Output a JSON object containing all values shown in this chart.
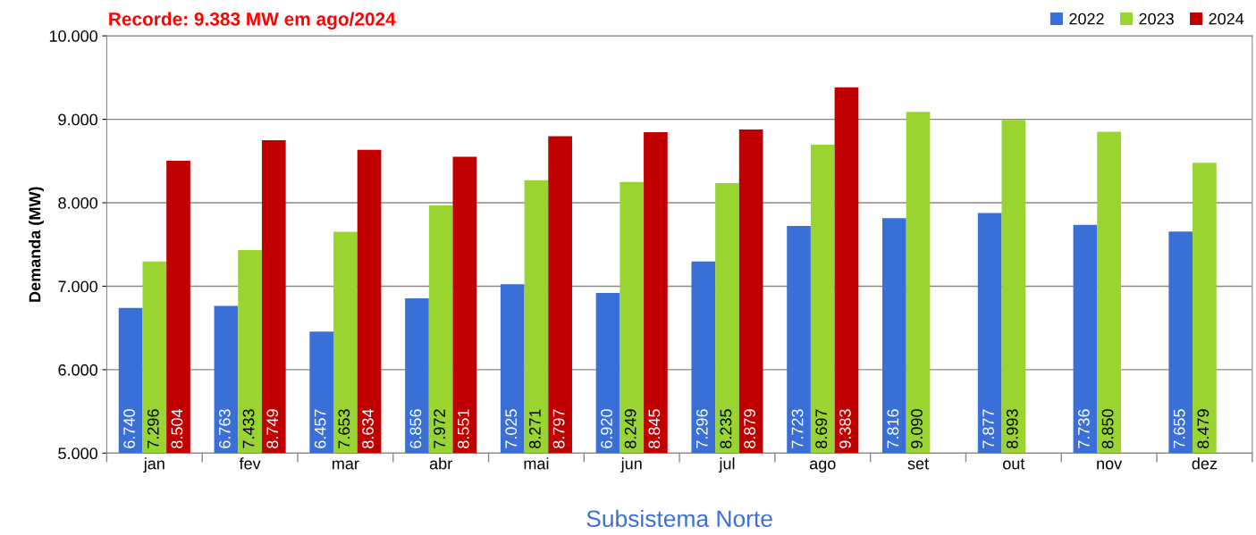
{
  "chart_data": {
    "type": "bar",
    "title": "Recorde: 9.383 MW em ago/2024",
    "xlabel": "Subsistema Norte",
    "ylabel": "Demanda (MW)",
    "categories": [
      "jan",
      "fev",
      "mar",
      "abr",
      "mai",
      "jun",
      "jul",
      "ago",
      "set",
      "out",
      "nov",
      "dez"
    ],
    "series": [
      {
        "name": "2022",
        "color": "#3a6fd8",
        "values": [
          6740,
          6763,
          6457,
          6856,
          7025,
          6920,
          7296,
          7723,
          7816,
          7877,
          7736,
          7655
        ],
        "value_labels": [
          "6.740",
          "6.763",
          "6.457",
          "6.856",
          "7.025",
          "6.920",
          "7.296",
          "7.723",
          "7.816",
          "7.877",
          "7.736",
          "7.655"
        ]
      },
      {
        "name": "2023",
        "color": "#99d431",
        "values": [
          7296,
          7433,
          7653,
          7972,
          8271,
          8249,
          8235,
          8697,
          9090,
          8993,
          8850,
          8479
        ],
        "value_labels": [
          "7.296",
          "7.433",
          "7.653",
          "7.972",
          "8.271",
          "8.249",
          "8.235",
          "8.697",
          "9.090",
          "8.993",
          "8.850",
          "8.479"
        ]
      },
      {
        "name": "2024",
        "color": "#c00000",
        "values": [
          8504,
          8749,
          8634,
          8551,
          8797,
          8845,
          8879,
          9383,
          null,
          null,
          null,
          null
        ],
        "value_labels": [
          "8.504",
          "8.749",
          "8.634",
          "8.551",
          "8.797",
          "8.845",
          "8.879",
          "9.383",
          null,
          null,
          null,
          null
        ]
      }
    ],
    "ylim": [
      5000,
      10000
    ],
    "yticks": [
      {
        "value": 5000,
        "label": "5.000"
      },
      {
        "value": 6000,
        "label": "6.000"
      },
      {
        "value": 7000,
        "label": "7.000"
      },
      {
        "value": 8000,
        "label": "8.000"
      },
      {
        "value": 9000,
        "label": "9.000"
      },
      {
        "value": 10000,
        "label": "10.000"
      }
    ],
    "grid": "y",
    "legend": "top right"
  }
}
